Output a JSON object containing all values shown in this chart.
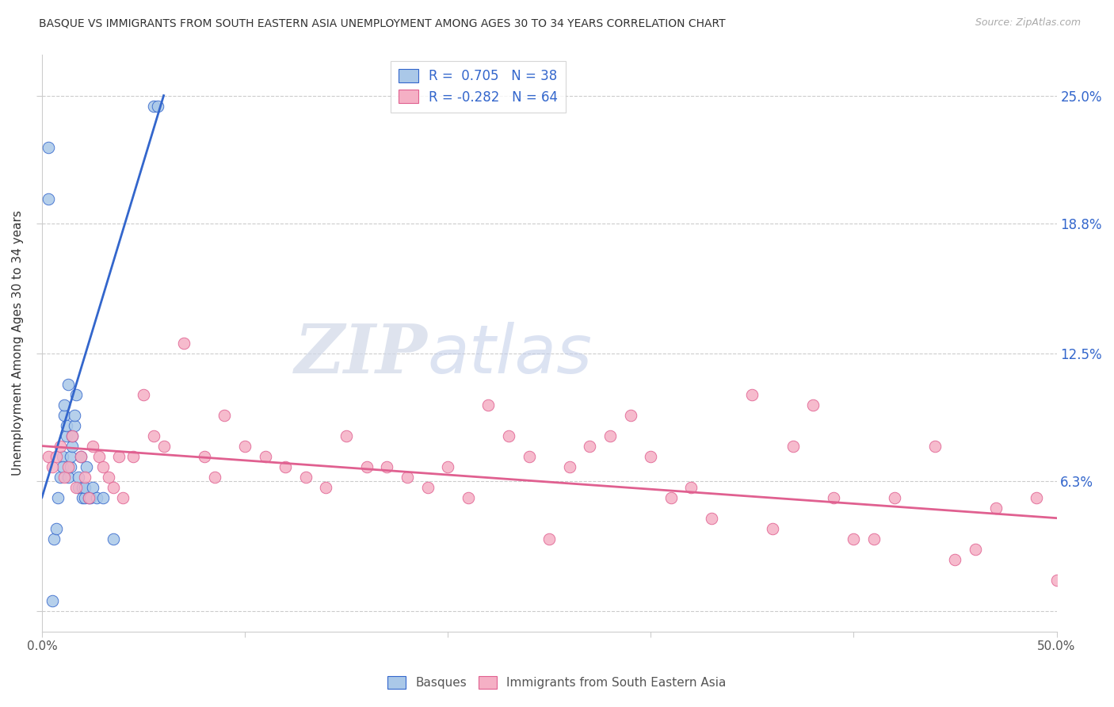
{
  "title": "BASQUE VS IMMIGRANTS FROM SOUTH EASTERN ASIA UNEMPLOYMENT AMONG AGES 30 TO 34 YEARS CORRELATION CHART",
  "source": "Source: ZipAtlas.com",
  "ylabel": "Unemployment Among Ages 30 to 34 years",
  "xlim": [
    0.0,
    50.0
  ],
  "ylim": [
    -1.0,
    27.0
  ],
  "ytick_vals": [
    0.0,
    6.3,
    12.5,
    18.8,
    25.0
  ],
  "ytick_labels": [
    "",
    "6.3%",
    "12.5%",
    "18.8%",
    "25.0%"
  ],
  "blue_R": 0.705,
  "blue_N": 38,
  "pink_R": -0.282,
  "pink_N": 64,
  "blue_color": "#aac8e8",
  "pink_color": "#f5b0c5",
  "blue_line_color": "#3366cc",
  "pink_line_color": "#e06090",
  "legend_label_blue": "Basques",
  "legend_label_pink": "Immigrants from South Eastern Asia",
  "blue_scatter_x": [
    0.3,
    0.3,
    0.5,
    0.6,
    0.7,
    0.8,
    0.9,
    1.0,
    1.0,
    1.1,
    1.1,
    1.2,
    1.2,
    1.3,
    1.3,
    1.4,
    1.4,
    1.5,
    1.5,
    1.6,
    1.6,
    1.7,
    1.8,
    1.8,
    1.9,
    2.0,
    2.0,
    2.1,
    2.1,
    2.2,
    2.3,
    2.4,
    2.5,
    2.7,
    3.0,
    3.5,
    5.5,
    5.7
  ],
  "blue_scatter_y": [
    22.5,
    20.0,
    0.5,
    3.5,
    4.0,
    5.5,
    6.5,
    7.5,
    7.0,
    9.5,
    10.0,
    8.5,
    9.0,
    11.0,
    6.5,
    7.0,
    7.5,
    8.0,
    8.5,
    9.0,
    9.5,
    10.5,
    6.0,
    6.5,
    7.5,
    5.5,
    6.0,
    5.5,
    6.0,
    7.0,
    5.5,
    5.5,
    6.0,
    5.5,
    5.5,
    3.5,
    24.5,
    24.5
  ],
  "pink_scatter_x": [
    0.3,
    0.5,
    0.7,
    0.9,
    1.1,
    1.3,
    1.5,
    1.7,
    1.9,
    2.1,
    2.3,
    2.5,
    2.8,
    3.0,
    3.3,
    3.5,
    3.8,
    4.0,
    4.5,
    5.0,
    5.5,
    6.0,
    7.0,
    8.0,
    8.5,
    9.0,
    10.0,
    11.0,
    12.0,
    13.0,
    14.0,
    15.0,
    16.0,
    17.0,
    18.0,
    19.0,
    20.0,
    21.0,
    22.0,
    23.0,
    24.0,
    25.0,
    26.0,
    27.0,
    28.0,
    29.0,
    30.0,
    31.0,
    32.0,
    33.0,
    35.0,
    36.0,
    37.0,
    38.0,
    39.0,
    40.0,
    41.0,
    42.0,
    44.0,
    45.0,
    46.0,
    47.0,
    49.0,
    50.0
  ],
  "pink_scatter_y": [
    7.5,
    7.0,
    7.5,
    8.0,
    6.5,
    7.0,
    8.5,
    6.0,
    7.5,
    6.5,
    5.5,
    8.0,
    7.5,
    7.0,
    6.5,
    6.0,
    7.5,
    5.5,
    7.5,
    10.5,
    8.5,
    8.0,
    13.0,
    7.5,
    6.5,
    9.5,
    8.0,
    7.5,
    7.0,
    6.5,
    6.0,
    8.5,
    7.0,
    7.0,
    6.5,
    6.0,
    7.0,
    5.5,
    10.0,
    8.5,
    7.5,
    3.5,
    7.0,
    8.0,
    8.5,
    9.5,
    7.5,
    5.5,
    6.0,
    4.5,
    10.5,
    4.0,
    8.0,
    10.0,
    5.5,
    3.5,
    3.5,
    5.5,
    8.0,
    2.5,
    3.0,
    5.0,
    5.5,
    1.5
  ],
  "blue_regline_x": [
    0.0,
    6.0
  ],
  "blue_regline_y": [
    5.5,
    25.0
  ],
  "pink_regline_x": [
    0.0,
    50.0
  ],
  "pink_regline_y": [
    8.0,
    4.5
  ],
  "watermark_zip": "ZIP",
  "watermark_atlas": "atlas",
  "background_color": "#ffffff",
  "grid_color": "#cccccc",
  "tick_color": "#3366cc"
}
